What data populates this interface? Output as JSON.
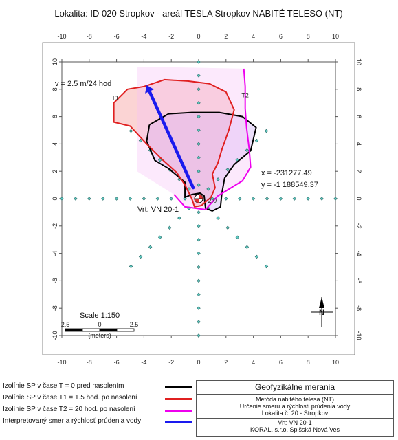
{
  "title": "Lokalita: ID 020  Stropkov - areál TESLA Stropkov  NABITÉ TELESO (NT)",
  "chart_data": {
    "type": "contour-map",
    "xlim": [
      -10,
      10
    ],
    "ylim": [
      -10,
      10
    ],
    "xticks": [
      -10,
      -8,
      -6,
      -4,
      -2,
      0,
      2,
      4,
      6,
      8,
      10
    ],
    "yticks": [
      -10,
      -8,
      -6,
      -4,
      -2,
      0,
      2,
      4,
      6,
      8,
      10
    ],
    "grid": false,
    "measurement_points": {
      "rays_deg": [
        0,
        45,
        90,
        135,
        180,
        225,
        270,
        315
      ],
      "step": 1,
      "max_radius": 10
    },
    "isolines": [
      {
        "name": "T = 0",
        "color": "#000000",
        "points": [
          [
            -3.6,
            5.4
          ],
          [
            -2.2,
            6.2
          ],
          [
            -0.5,
            6.3
          ],
          [
            1.5,
            6.3
          ],
          [
            3.2,
            6.0
          ],
          [
            4.2,
            5.2
          ],
          [
            3.8,
            3.5
          ],
          [
            2.6,
            2.5
          ],
          [
            1.9,
            1.5
          ],
          [
            1.7,
            0.4
          ],
          [
            1.6,
            -0.6
          ],
          [
            1.0,
            -0.9
          ],
          [
            0.5,
            -0.7
          ],
          [
            0.4,
            0.2
          ],
          [
            0.1,
            0.4
          ],
          [
            -0.5,
            0.3
          ],
          [
            -1.0,
            0.1
          ],
          [
            -1.0,
            1.2
          ],
          [
            -2.2,
            2.2
          ],
          [
            -3.2,
            2.8
          ],
          [
            -3.8,
            4.2
          ],
          [
            -3.6,
            5.4
          ]
        ]
      },
      {
        "name": "T1",
        "color": "#e02020",
        "points": [
          [
            -4.0,
            8.2
          ],
          [
            -2.5,
            8.7
          ],
          [
            -0.8,
            8.6
          ],
          [
            0.8,
            8.4
          ],
          [
            2.0,
            7.8
          ],
          [
            2.6,
            6.5
          ],
          [
            2.2,
            5.0
          ],
          [
            1.7,
            3.6
          ],
          [
            1.4,
            2.6
          ],
          [
            1.0,
            1.8
          ],
          [
            1.2,
            0.8
          ],
          [
            0.9,
            0.1
          ],
          [
            0.2,
            -0.5
          ],
          [
            -0.3,
            -0.6
          ],
          [
            -0.5,
            0.0
          ],
          [
            -1.0,
            1.0
          ],
          [
            -1.6,
            1.9
          ],
          [
            -2.6,
            2.8
          ],
          [
            -3.8,
            4.0
          ],
          [
            -5.0,
            5.3
          ],
          [
            -6.2,
            5.6
          ],
          [
            -6.2,
            7.0
          ],
          [
            -5.2,
            8.0
          ],
          [
            -4.0,
            8.2
          ]
        ]
      },
      {
        "name": "T2",
        "color": "#ee00ee",
        "points": [
          [
            -1.8,
            0.3
          ],
          [
            -1.0,
            -0.6
          ],
          [
            0.5,
            -0.8
          ],
          [
            1.4,
            0.2
          ],
          [
            3.2,
            1.3
          ],
          [
            3.8,
            2.3
          ],
          [
            3.7,
            3.6
          ],
          [
            3.5,
            5.2
          ],
          [
            3.4,
            6.6
          ],
          [
            3.4,
            8.2
          ],
          [
            3.3,
            9.5
          ]
        ]
      }
    ],
    "arrow": {
      "from": [
        -0.4,
        0.8
      ],
      "to": [
        -3.8,
        8.3
      ],
      "color": "#1a1aee"
    },
    "isoline_labels": [
      {
        "text": "T1",
        "x": -6.1,
        "y": 7.2
      },
      {
        "text": "T2",
        "x": 3.4,
        "y": 7.4
      },
      {
        "text": "2.0",
        "x": 1.0,
        "y": -0.3
      }
    ],
    "annotations": {
      "velocity": "v = 2.5 m/24 hod",
      "coord_x": "x =     -231277.49",
      "coord_y": "y = -1 188549.37",
      "well": "Vrt: VN 20-1"
    },
    "scale": {
      "title": "Scale 1:150",
      "ticks": [
        "2.5",
        "0",
        "2.5"
      ],
      "unit": "(meters)"
    },
    "north_label": "N"
  },
  "legend": [
    {
      "label": "Izolínie SP v čase  T = 0  pred nasolením",
      "color": "#000000"
    },
    {
      "label": "Izolínie SP v čase T1 = 1.5 hod. po nasolení",
      "color": "#e02020"
    },
    {
      "label": "Izolínie SP v čase T2 = 20 hod.  po nasolení",
      "color": "#ee00ee"
    },
    {
      "label": "Interpretovaný smer a rýchlosť prúdenia vody",
      "color": "#1a1aee"
    }
  ],
  "info_box": {
    "heading": "Geofyzikálne merania",
    "line1": "Metóda nabitého telesa (NT)",
    "line2": "Určenie smeru a rýchlosti prúdenia vody",
    "line3": "Lokalita č. 20 - Stropkov",
    "line4": "Vrt: VN 20-1",
    "line5": "KORAL, s.r.o. Spišská Nová Ves"
  }
}
